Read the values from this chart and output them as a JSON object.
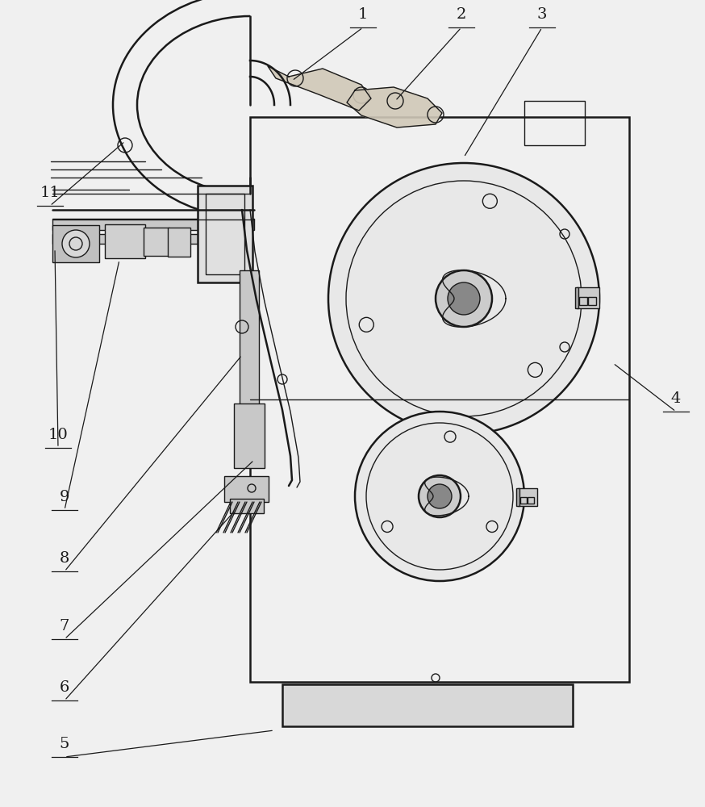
{
  "bg_color": "#f0f0f0",
  "line_color": "#1a1a1a",
  "lw": 1.0,
  "lw2": 1.8
}
